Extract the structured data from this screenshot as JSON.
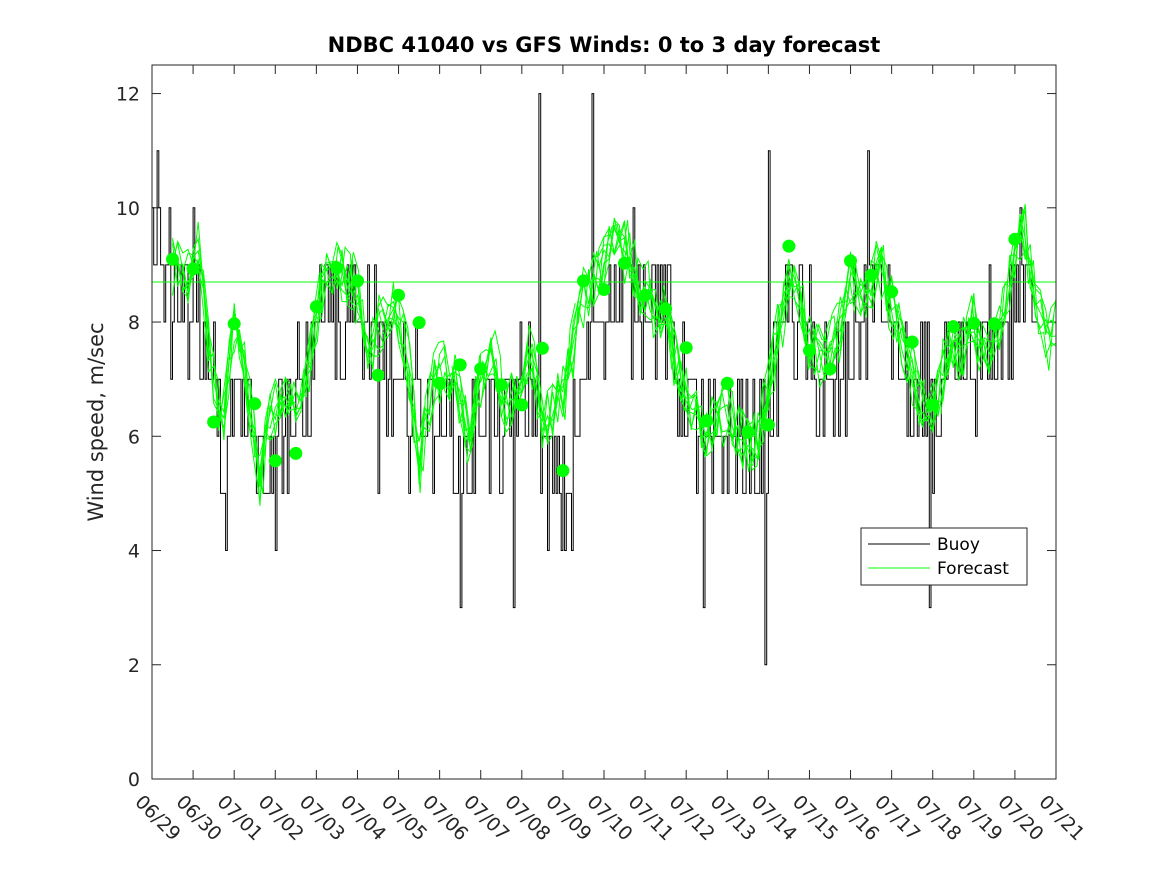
{
  "chart_data": {
    "type": "line",
    "title": "NDBC 41040 vs GFS Winds: 0 to 3 day forecast",
    "xlabel": "",
    "ylabel": "Wind speed, m/sec",
    "x_unit": "days since 06/29 00:00",
    "xlim": [
      0,
      22
    ],
    "ylim": [
      0,
      12.5
    ],
    "yticks": [
      0,
      2,
      4,
      6,
      8,
      10,
      12
    ],
    "xticks": [
      {
        "t": 0,
        "label": "06/29"
      },
      {
        "t": 1,
        "label": "06/30"
      },
      {
        "t": 2,
        "label": "07/01"
      },
      {
        "t": 3,
        "label": "07/02"
      },
      {
        "t": 4,
        "label": "07/03"
      },
      {
        "t": 5,
        "label": "07/04"
      },
      {
        "t": 6,
        "label": "07/05"
      },
      {
        "t": 7,
        "label": "07/06"
      },
      {
        "t": 8,
        "label": "07/07"
      },
      {
        "t": 9,
        "label": "07/08"
      },
      {
        "t": 10,
        "label": "07/09"
      },
      {
        "t": 11,
        "label": "07/10"
      },
      {
        "t": 12,
        "label": "07/11"
      },
      {
        "t": 13,
        "label": "07/12"
      },
      {
        "t": 14,
        "label": "07/13"
      },
      {
        "t": 15,
        "label": "07/14"
      },
      {
        "t": 16,
        "label": "07/15"
      },
      {
        "t": 17,
        "label": "07/16"
      },
      {
        "t": 18,
        "label": "07/17"
      },
      {
        "t": 19,
        "label": "07/18"
      },
      {
        "t": 20,
        "label": "07/19"
      },
      {
        "t": 21,
        "label": "07/20"
      },
      {
        "t": 22,
        "label": "07/21"
      }
    ],
    "legend": {
      "position": "lower-right",
      "entries": [
        "Buoy",
        "Forecast"
      ]
    },
    "colors": {
      "buoy": "#000000",
      "forecast": "#00ff00",
      "axis": "#262626"
    },
    "buoy_control": [
      [
        0,
        9
      ],
      [
        0.15,
        10
      ],
      [
        0.3,
        8.5
      ],
      [
        0.6,
        8.5
      ],
      [
        0.9,
        8.5
      ],
      [
        1.1,
        8
      ],
      [
        1.3,
        7
      ],
      [
        1.6,
        6.5
      ],
      [
        1.8,
        5.5
      ],
      [
        2.1,
        7
      ],
      [
        2.3,
        6.5
      ],
      [
        2.6,
        5.5
      ],
      [
        2.9,
        5.5
      ],
      [
        3.1,
        6.5
      ],
      [
        3.4,
        6.5
      ],
      [
        3.7,
        6.5
      ],
      [
        4.0,
        8
      ],
      [
        4.3,
        9
      ],
      [
        4.6,
        8
      ],
      [
        5.0,
        8
      ],
      [
        5.3,
        8
      ],
      [
        5.6,
        7.5
      ],
      [
        5.9,
        6.5
      ],
      [
        6.2,
        6.5
      ],
      [
        6.5,
        6.5
      ],
      [
        6.8,
        6.5
      ],
      [
        7.1,
        6.5
      ],
      [
        7.4,
        6
      ],
      [
        7.7,
        5.5
      ],
      [
        8.0,
        6.5
      ],
      [
        8.3,
        6
      ],
      [
        8.6,
        6
      ],
      [
        8.9,
        6.5
      ],
      [
        9.2,
        7
      ],
      [
        9.5,
        5.5
      ],
      [
        9.8,
        5
      ],
      [
        10.1,
        5
      ],
      [
        10.4,
        6.5
      ],
      [
        10.7,
        8
      ],
      [
        11.0,
        8.5
      ],
      [
        11.3,
        8.5
      ],
      [
        11.6,
        8.5
      ],
      [
        11.9,
        8.5
      ],
      [
        12.2,
        8.5
      ],
      [
        12.5,
        8
      ],
      [
        12.8,
        7
      ],
      [
        13.1,
        6.5
      ],
      [
        13.4,
        6
      ],
      [
        13.7,
        5.5
      ],
      [
        14.0,
        6
      ],
      [
        14.3,
        6
      ],
      [
        14.6,
        5.5
      ],
      [
        14.9,
        6
      ],
      [
        15.2,
        7
      ],
      [
        15.4,
        8.5
      ],
      [
        15.7,
        8
      ],
      [
        16.0,
        7.5
      ],
      [
        16.3,
        7
      ],
      [
        16.6,
        6.5
      ],
      [
        16.9,
        7
      ],
      [
        17.2,
        8
      ],
      [
        17.5,
        8.5
      ],
      [
        17.8,
        8.5
      ],
      [
        18.1,
        7.5
      ],
      [
        18.4,
        6.5
      ],
      [
        18.7,
        6.5
      ],
      [
        19.0,
        6.5
      ],
      [
        19.3,
        7
      ],
      [
        19.6,
        7
      ],
      [
        19.9,
        7
      ],
      [
        20.2,
        7.5
      ],
      [
        20.5,
        7.5
      ],
      [
        20.8,
        8
      ],
      [
        21.1,
        8.5
      ],
      [
        21.4,
        8.5
      ],
      [
        21.55,
        8.5
      ]
    ],
    "buoy_spikes": [
      [
        1.0,
        10
      ],
      [
        1.8,
        4
      ],
      [
        3.0,
        4
      ],
      [
        5.5,
        5
      ],
      [
        7.5,
        3
      ],
      [
        8.8,
        3
      ],
      [
        9.4,
        12
      ],
      [
        10.2,
        4
      ],
      [
        10.7,
        12
      ],
      [
        13.4,
        3
      ],
      [
        14.9,
        2
      ],
      [
        15.0,
        11
      ],
      [
        17.4,
        11
      ],
      [
        18.9,
        3
      ]
    ],
    "buoy_end": 21.55,
    "forecast_control": [
      [
        0.5,
        9
      ],
      [
        0.9,
        8.8
      ],
      [
        1.1,
        9.5
      ],
      [
        1.4,
        7.5
      ],
      [
        1.7,
        6
      ],
      [
        2.0,
        8
      ],
      [
        2.3,
        7
      ],
      [
        2.6,
        5.2
      ],
      [
        2.9,
        6.4
      ],
      [
        3.2,
        6.6
      ],
      [
        3.5,
        6.5
      ],
      [
        3.8,
        7.2
      ],
      [
        4.1,
        8.5
      ],
      [
        4.4,
        9
      ],
      [
        4.7,
        8.8
      ],
      [
        5.0,
        8.5
      ],
      [
        5.3,
        7.5
      ],
      [
        5.6,
        8
      ],
      [
        5.9,
        8.3
      ],
      [
        6.2,
        7.5
      ],
      [
        6.5,
        5.5
      ],
      [
        6.8,
        6.8
      ],
      [
        7.1,
        7.2
      ],
      [
        7.4,
        7
      ],
      [
        7.7,
        6
      ],
      [
        8.0,
        7
      ],
      [
        8.3,
        7.4
      ],
      [
        8.6,
        6.5
      ],
      [
        8.9,
        6.8
      ],
      [
        9.2,
        7.5
      ],
      [
        9.5,
        6.2
      ],
      [
        9.8,
        6.5
      ],
      [
        10.1,
        7
      ],
      [
        10.4,
        8.2
      ],
      [
        10.7,
        8.7
      ],
      [
        11.0,
        9
      ],
      [
        11.3,
        9.5
      ],
      [
        11.6,
        9.2
      ],
      [
        11.9,
        8.6
      ],
      [
        12.2,
        8.3
      ],
      [
        12.5,
        8
      ],
      [
        12.8,
        7.2
      ],
      [
        13.1,
        6.6
      ],
      [
        13.4,
        6
      ],
      [
        13.7,
        6.3
      ],
      [
        14.0,
        6.5
      ],
      [
        14.3,
        6
      ],
      [
        14.6,
        5.7
      ],
      [
        14.9,
        6.4
      ],
      [
        15.2,
        7.6
      ],
      [
        15.5,
        8.8
      ],
      [
        15.8,
        8.3
      ],
      [
        16.1,
        7.4
      ],
      [
        16.4,
        7.3
      ],
      [
        16.7,
        7.8
      ],
      [
        17.0,
        8.8
      ],
      [
        17.3,
        8.3
      ],
      [
        17.6,
        9
      ],
      [
        17.9,
        8.6
      ],
      [
        18.2,
        7.8
      ],
      [
        18.5,
        7
      ],
      [
        18.8,
        6.4
      ],
      [
        19.1,
        6.6
      ],
      [
        19.4,
        7.6
      ],
      [
        19.7,
        7.4
      ],
      [
        20.0,
        7.9
      ],
      [
        20.3,
        7.3
      ],
      [
        20.6,
        7.8
      ],
      [
        20.9,
        8.8
      ],
      [
        21.2,
        9.8
      ],
      [
        21.5,
        8.5
      ],
      [
        21.8,
        7.6
      ],
      [
        22.0,
        8
      ]
    ],
    "forecast_end": 22,
    "forecast_member_count": 12,
    "forecast_flat_line": {
      "y": 8.7,
      "x_start": 0,
      "x_end": 22
    },
    "forecast_markers": [
      [
        0.5,
        9.1
      ],
      [
        1.0,
        8.93
      ],
      [
        1.5,
        6.25
      ],
      [
        2.0,
        7.97
      ],
      [
        2.5,
        6.57
      ],
      [
        3.0,
        5.57
      ],
      [
        3.5,
        5.7
      ],
      [
        4.0,
        8.27
      ],
      [
        4.5,
        8.95
      ],
      [
        5.0,
        8.72
      ],
      [
        5.5,
        7.07
      ],
      [
        6.0,
        8.47
      ],
      [
        6.5,
        7.99
      ],
      [
        7.0,
        6.93
      ],
      [
        7.5,
        7.25
      ],
      [
        8.0,
        7.18
      ],
      [
        8.5,
        6.9
      ],
      [
        9.0,
        6.55
      ],
      [
        9.5,
        7.54
      ],
      [
        10.0,
        5.4
      ],
      [
        10.5,
        8.72
      ],
      [
        11.0,
        8.57
      ],
      [
        11.5,
        9.03
      ],
      [
        12.0,
        8.47
      ],
      [
        12.5,
        8.23
      ],
      [
        13.0,
        7.55
      ],
      [
        13.5,
        6.27
      ],
      [
        14.0,
        6.93
      ],
      [
        14.5,
        6.07
      ],
      [
        15.0,
        6.2
      ],
      [
        15.5,
        9.33
      ],
      [
        16.0,
        7.5
      ],
      [
        16.5,
        7.18
      ],
      [
        17.0,
        9.07
      ],
      [
        17.5,
        8.82
      ],
      [
        18.0,
        8.53
      ],
      [
        18.5,
        7.65
      ],
      [
        19.0,
        6.55
      ],
      [
        19.5,
        7.92
      ],
      [
        20.0,
        7.98
      ],
      [
        20.5,
        7.97
      ],
      [
        21.0,
        9.45
      ]
    ]
  }
}
